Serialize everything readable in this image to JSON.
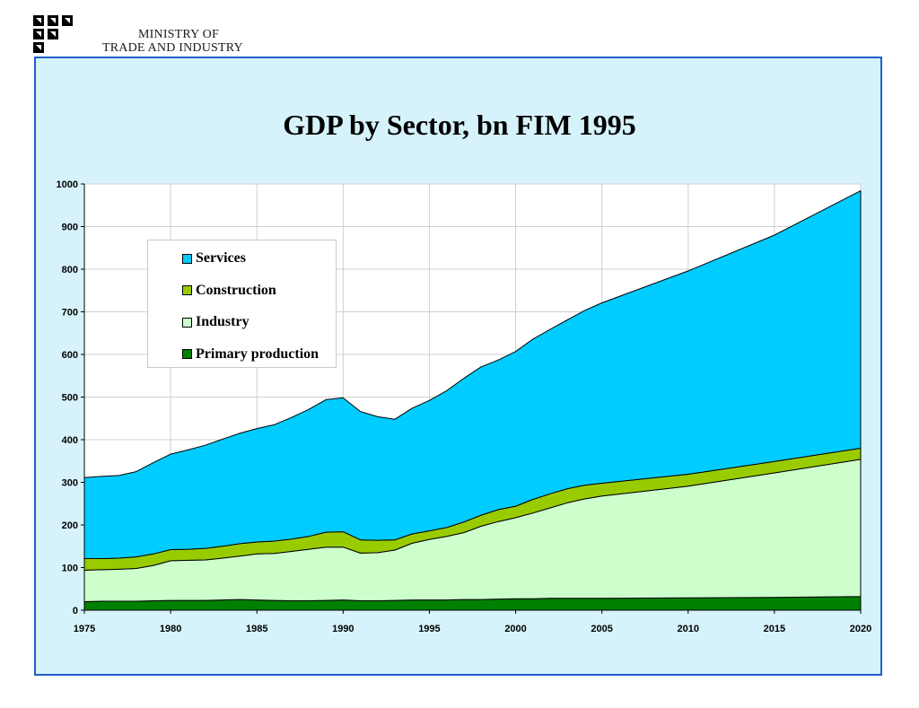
{
  "header": {
    "ministry_line1": "MINISTRY OF",
    "ministry_line2": "TRADE AND INDUSTRY",
    "logo_icon": "ministry-logo-icon"
  },
  "colors": {
    "frame_border": "#1f5fcc",
    "frame_background": "#d6f3fb",
    "services": "#00ccff",
    "construction": "#99cc00",
    "industry": "#ccffcc",
    "primary": "#008000"
  },
  "chart_data": {
    "type": "area",
    "stacked": true,
    "title": "GDP by Sector, bn FIM 1995",
    "xlabel": "",
    "ylabel": "",
    "xlim": [
      1975,
      2020
    ],
    "ylim": [
      0,
      1000
    ],
    "x_ticks": [
      "1975",
      "1980",
      "1985",
      "1990",
      "1995",
      "2000",
      "2005",
      "2010",
      "2015",
      "2020"
    ],
    "y_ticks": [
      "0",
      "100",
      "200",
      "300",
      "400",
      "500",
      "600",
      "700",
      "800",
      "900",
      "1000"
    ],
    "grid": true,
    "legend_position": "top-left",
    "x": [
      1975,
      1976,
      1977,
      1978,
      1979,
      1980,
      1981,
      1982,
      1983,
      1984,
      1985,
      1986,
      1987,
      1988,
      1989,
      1990,
      1991,
      1992,
      1993,
      1994,
      1995,
      1996,
      1997,
      1998,
      1999,
      2000,
      2001,
      2002,
      2003,
      2004,
      2005,
      2010,
      2015,
      2020
    ],
    "series": [
      {
        "name": "Primary production",
        "color": "#008000",
        "values": [
          20,
          21,
          21,
          21,
          22,
          23,
          23,
          23,
          24,
          25,
          24,
          23,
          22,
          22,
          23,
          24,
          22,
          22,
          23,
          24,
          24,
          24,
          25,
          25,
          26,
          27,
          27,
          28,
          28,
          28,
          28,
          29,
          30,
          32
        ]
      },
      {
        "name": "Industry",
        "color": "#ccffcc",
        "values": [
          74,
          74,
          75,
          77,
          83,
          93,
          94,
          95,
          98,
          102,
          108,
          110,
          116,
          121,
          125,
          124,
          112,
          113,
          118,
          133,
          142,
          149,
          157,
          172,
          182,
          190,
          201,
          212,
          224,
          233,
          240,
          262,
          292,
          322
        ]
      },
      {
        "name": "Construction",
        "color": "#99cc00",
        "values": [
          27,
          26,
          26,
          27,
          27,
          26,
          26,
          27,
          28,
          29,
          28,
          29,
          29,
          30,
          35,
          36,
          31,
          29,
          24,
          22,
          20,
          21,
          25,
          26,
          28,
          27,
          32,
          33,
          33,
          32,
          30,
          28,
          27,
          26
        ]
      },
      {
        "name": "Services",
        "color": "#00ccff",
        "values": [
          190,
          193,
          194,
          200,
          214,
          224,
          233,
          242,
          251,
          259,
          266,
          273,
          285,
          298,
          311,
          314,
          301,
          290,
          283,
          295,
          306,
          321,
          337,
          348,
          351,
          363,
          376,
          386,
          396,
          410,
          423,
          477,
          531,
          604
        ]
      }
    ]
  }
}
